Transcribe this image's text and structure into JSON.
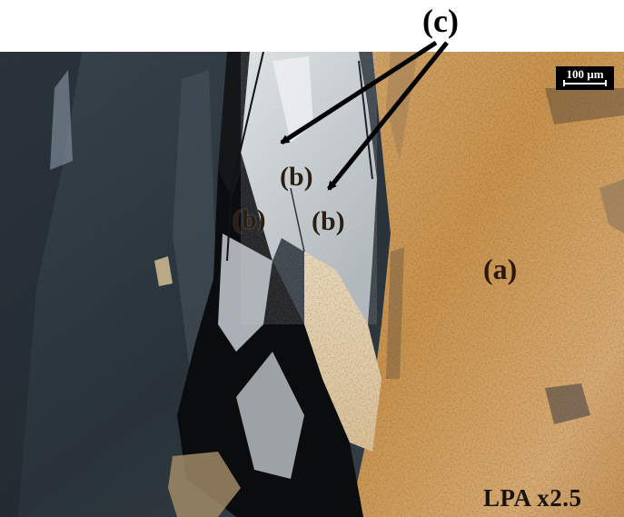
{
  "labels": {
    "c": "(c)",
    "b_upper": "(b)",
    "b_left": "(b)",
    "b_right": "(b)",
    "a": "(a)",
    "mode": "LPA  x2.5"
  },
  "scalebar": {
    "text": "100 µm"
  },
  "colors": {
    "dark_grain": "#2e3a44",
    "bright_grain": "#d8dde0",
    "extinct_grain": "#0b0c0e",
    "tan_grain": "#c99a5e",
    "arrow": "#000000"
  },
  "icons": {
    "arrows": "arrow-icon"
  }
}
